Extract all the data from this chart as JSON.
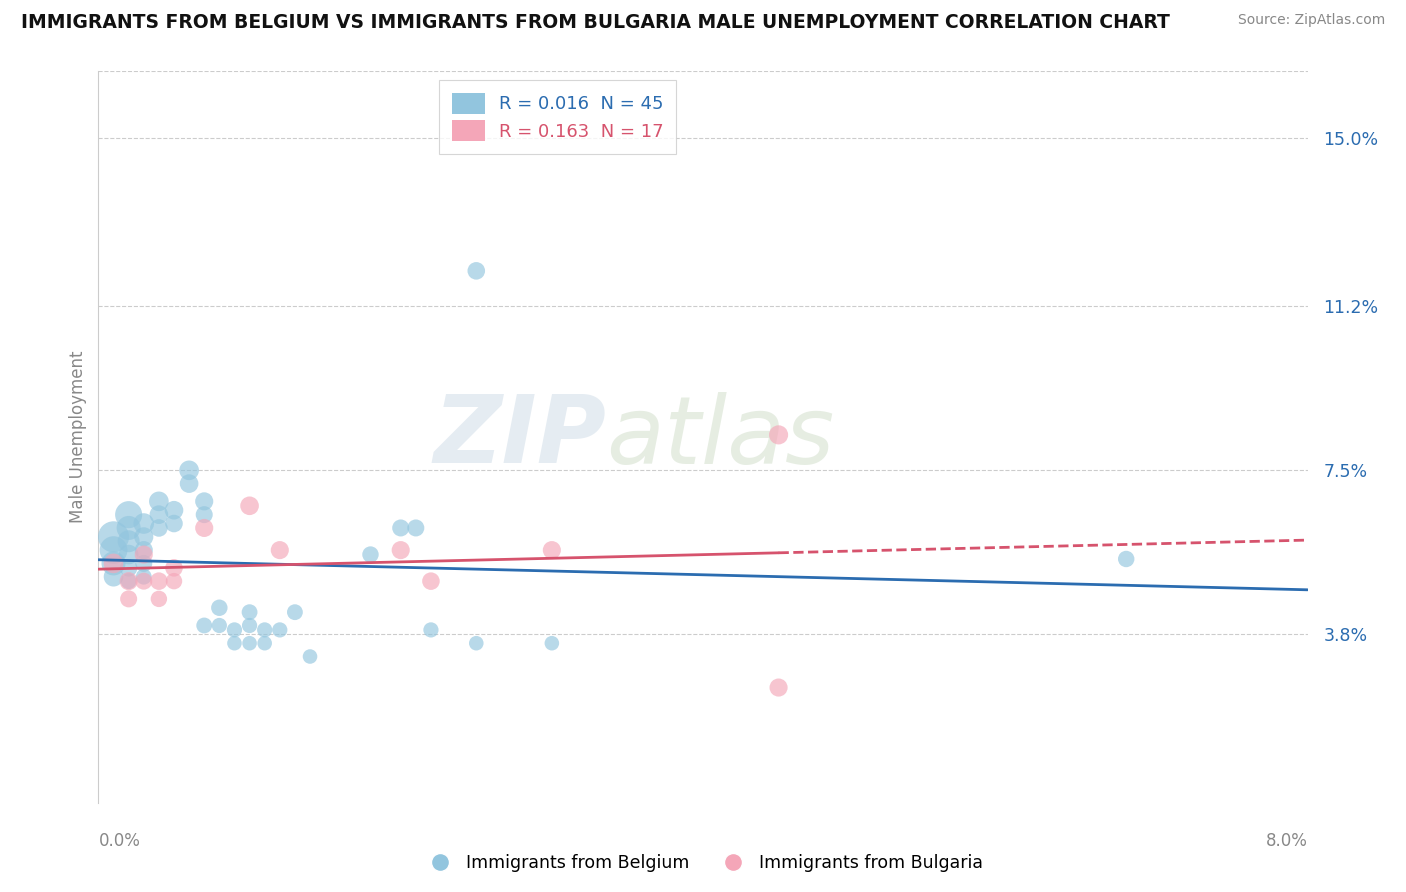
{
  "title": "IMMIGRANTS FROM BELGIUM VS IMMIGRANTS FROM BULGARIA MALE UNEMPLOYMENT CORRELATION CHART",
  "source": "Source: ZipAtlas.com",
  "ylabel": "Male Unemployment",
  "ytick_labels": [
    "15.0%",
    "11.2%",
    "7.5%",
    "3.8%"
  ],
  "ytick_values": [
    0.15,
    0.112,
    0.075,
    0.038
  ],
  "xtick_values": [
    0.0,
    0.02,
    0.04,
    0.06,
    0.08
  ],
  "xlim": [
    0.0,
    0.08
  ],
  "ylim": [
    0.0,
    0.165
  ],
  "legend1_r": "0.016",
  "legend1_n": "45",
  "legend2_r": "0.163",
  "legend2_n": "17",
  "legend_label1": "Immigrants from Belgium",
  "legend_label2": "Immigrants from Bulgaria",
  "color_blue": "#92c5de",
  "color_pink": "#f4a6b8",
  "line_color_blue": "#2b6cb0",
  "line_color_pink": "#d6536d",
  "watermark_zip": "ZIP",
  "watermark_atlas": "atlas",
  "blue_points": [
    [
      0.001,
      0.06
    ],
    [
      0.001,
      0.057
    ],
    [
      0.001,
      0.054
    ],
    [
      0.001,
      0.051
    ],
    [
      0.002,
      0.065
    ],
    [
      0.002,
      0.062
    ],
    [
      0.002,
      0.059
    ],
    [
      0.002,
      0.056
    ],
    [
      0.002,
      0.053
    ],
    [
      0.002,
      0.05
    ],
    [
      0.003,
      0.063
    ],
    [
      0.003,
      0.06
    ],
    [
      0.003,
      0.057
    ],
    [
      0.003,
      0.054
    ],
    [
      0.003,
      0.051
    ],
    [
      0.004,
      0.068
    ],
    [
      0.004,
      0.065
    ],
    [
      0.004,
      0.062
    ],
    [
      0.005,
      0.066
    ],
    [
      0.005,
      0.063
    ],
    [
      0.006,
      0.075
    ],
    [
      0.006,
      0.072
    ],
    [
      0.007,
      0.068
    ],
    [
      0.007,
      0.065
    ],
    [
      0.007,
      0.04
    ],
    [
      0.008,
      0.044
    ],
    [
      0.008,
      0.04
    ],
    [
      0.009,
      0.036
    ],
    [
      0.009,
      0.039
    ],
    [
      0.01,
      0.043
    ],
    [
      0.01,
      0.04
    ],
    [
      0.01,
      0.036
    ],
    [
      0.011,
      0.039
    ],
    [
      0.011,
      0.036
    ],
    [
      0.012,
      0.039
    ],
    [
      0.013,
      0.043
    ],
    [
      0.014,
      0.033
    ],
    [
      0.018,
      0.056
    ],
    [
      0.02,
      0.062
    ],
    [
      0.021,
      0.062
    ],
    [
      0.022,
      0.039
    ],
    [
      0.025,
      0.036
    ],
    [
      0.025,
      0.12
    ],
    [
      0.03,
      0.036
    ],
    [
      0.068,
      0.055
    ]
  ],
  "pink_points": [
    [
      0.001,
      0.054
    ],
    [
      0.002,
      0.05
    ],
    [
      0.002,
      0.046
    ],
    [
      0.003,
      0.056
    ],
    [
      0.003,
      0.05
    ],
    [
      0.004,
      0.05
    ],
    [
      0.004,
      0.046
    ],
    [
      0.005,
      0.053
    ],
    [
      0.005,
      0.05
    ],
    [
      0.007,
      0.062
    ],
    [
      0.01,
      0.067
    ],
    [
      0.012,
      0.057
    ],
    [
      0.02,
      0.057
    ],
    [
      0.022,
      0.05
    ],
    [
      0.03,
      0.057
    ],
    [
      0.045,
      0.083
    ],
    [
      0.045,
      0.026
    ]
  ],
  "blue_sizes": [
    500,
    400,
    300,
    200,
    380,
    300,
    250,
    200,
    160,
    130,
    220,
    190,
    170,
    150,
    130,
    200,
    180,
    160,
    180,
    160,
    200,
    180,
    170,
    150,
    130,
    140,
    120,
    110,
    120,
    130,
    120,
    110,
    120,
    110,
    120,
    130,
    110,
    140,
    150,
    150,
    120,
    110,
    160,
    110,
    140
  ],
  "pink_sizes": [
    200,
    170,
    150,
    170,
    150,
    160,
    140,
    160,
    140,
    170,
    180,
    170,
    170,
    160,
    170,
    190,
    170
  ]
}
